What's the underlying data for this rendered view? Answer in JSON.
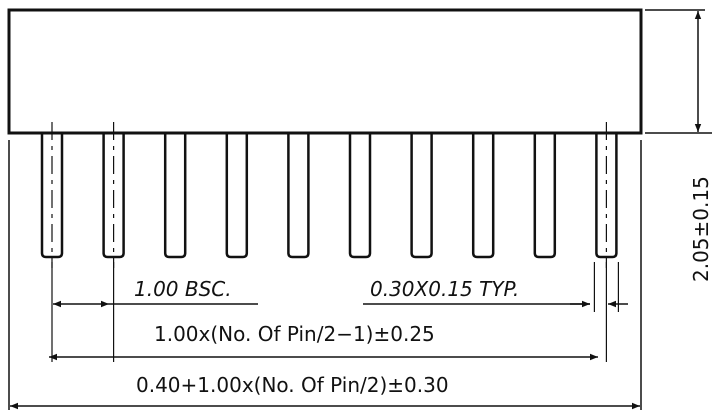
{
  "drawing": {
    "pin_count": 10,
    "pitch_label": "1.00 BSC.",
    "pin_size_label": "0.30X0.15 TYP.",
    "span_label": "1.00x(No. Of Pin/2−1)±0.25",
    "overall_label": "0.40+1.00x(No. Of Pin/2)±0.30",
    "height_label": "2.05±0.15"
  }
}
